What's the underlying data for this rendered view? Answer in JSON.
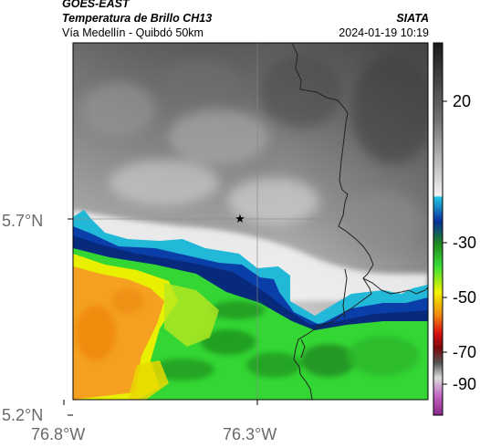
{
  "header": {
    "satellite": "GOES-EAST",
    "product": "Temperatura de Brillo CH13",
    "region": "Vía Medellín - Quibdó 50km",
    "org": "SIATA",
    "datetime": "2024-01-19 10:19"
  },
  "map": {
    "lat_ticks": [
      "5.7°N",
      "5.2°N"
    ],
    "lon_ticks": [
      "76.8°W",
      "76.3°W"
    ],
    "marker": "star-marker"
  },
  "colorbar": {
    "ticks": [
      "20",
      "-30",
      "-50",
      "-70",
      "-90"
    ]
  },
  "colors": {
    "warm_gray": "#cfcfcf",
    "dark_gray": "#3c3c3c",
    "cyan": "#22b8d8",
    "blue": "#0a3ea8",
    "green": "#33d633",
    "yellow": "#f2f200",
    "orange": "#f5a020",
    "red": "#d81010",
    "magenta": "#a238a8"
  }
}
